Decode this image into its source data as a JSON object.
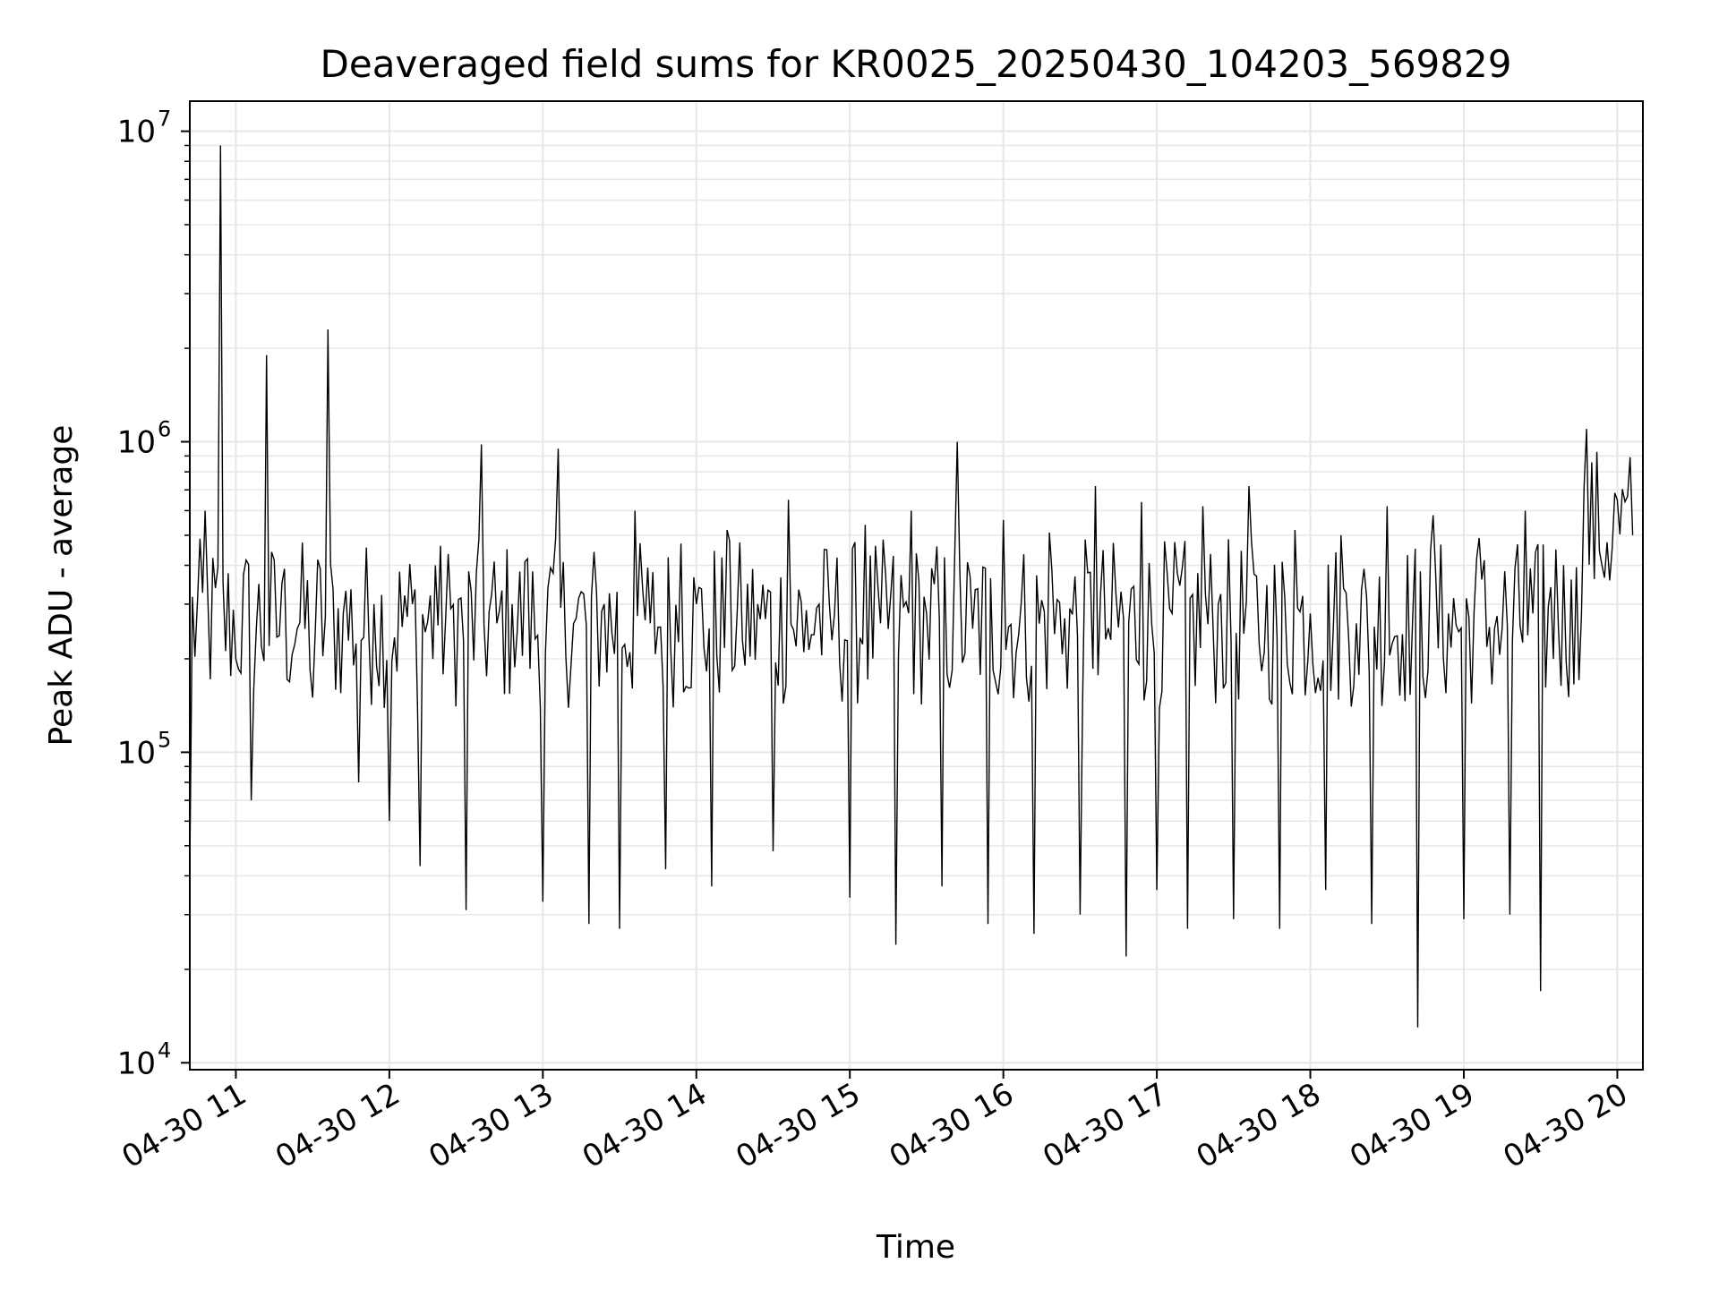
{
  "chart_data": {
    "type": "line",
    "title": "Deaveraged field sums for KR0025_20250430_104203_569829",
    "xlabel": "Time",
    "ylabel": "Peak ADU - average",
    "yscale": "log",
    "ylim": [
      9500,
      12500000
    ],
    "xlim": [
      "2025-04-30 10:42",
      "2025-04-30 20:10"
    ],
    "grid": true,
    "line_color": "#000000",
    "grid_color": "#e6e6e6",
    "x_tick_labels": [
      "04-30 11",
      "04-30 12",
      "04-30 13",
      "04-30 14",
      "04-30 15",
      "04-30 16",
      "04-30 17",
      "04-30 18",
      "04-30 19",
      "04-30 20"
    ],
    "y_tick_labels": [
      {
        "base": "10",
        "exp": "4"
      },
      {
        "base": "10",
        "exp": "5"
      },
      {
        "base": "10",
        "exp": "6"
      },
      {
        "base": "10",
        "exp": "7"
      }
    ],
    "series": [
      {
        "x": [
          "10:42",
          "10:48",
          "10:54",
          "11:00",
          "11:06",
          "11:12",
          "11:18",
          "11:24",
          "11:30",
          "11:36",
          "11:42",
          "11:48",
          "11:54",
          "12:00",
          "12:06",
          "12:12",
          "12:18",
          "12:24",
          "12:30",
          "12:36",
          "12:42",
          "12:48",
          "12:54",
          "13:00",
          "13:06",
          "13:12",
          "13:18",
          "13:24",
          "13:30",
          "13:36",
          "13:42",
          "13:48",
          "13:54",
          "14:00",
          "14:06",
          "14:12",
          "14:18",
          "14:24",
          "14:30",
          "14:36",
          "14:42",
          "14:48",
          "14:54",
          "15:00",
          "15:06",
          "15:12",
          "15:18",
          "15:24",
          "15:30",
          "15:36",
          "15:42",
          "15:48",
          "15:54",
          "16:00",
          "16:06",
          "16:12",
          "16:18",
          "16:24",
          "16:30",
          "16:36",
          "16:42",
          "16:48",
          "16:54",
          "17:00",
          "17:06",
          "17:12",
          "17:18",
          "17:24",
          "17:30",
          "17:36",
          "17:42",
          "17:48",
          "17:54",
          "18:00",
          "18:06",
          "18:12",
          "18:18",
          "18:24",
          "18:30",
          "18:36",
          "18:42",
          "18:48",
          "18:54",
          "19:00",
          "19:06",
          "19:12",
          "19:18",
          "19:24",
          "19:30",
          "19:36",
          "19:42",
          "19:48",
          "19:54",
          "20:00",
          "20:06"
        ],
        "y": [
          42000,
          600000,
          9000000,
          200000,
          70000,
          1900000,
          350000,
          250000,
          150000,
          2300000,
          280000,
          80000,
          300000,
          60000,
          320000,
          43000,
          400000,
          290000,
          31000,
          980000,
          260000,
          300000,
          420000,
          33000,
          950000,
          260000,
          28000,
          300000,
          27000,
          600000,
          260000,
          42000,
          470000,
          300000,
          37000,
          520000,
          230000,
          300000,
          48000,
          650000,
          210000,
          300000,
          280000,
          34000,
          540000,
          260000,
          24000,
          600000,
          280000,
          37000,
          1000000,
          250000,
          28000,
          560000,
          240000,
          26000,
          510000,
          270000,
          30000,
          720000,
          230000,
          22000,
          640000,
          36000,
          280000,
          27000,
          620000,
          300000,
          29000,
          720000,
          210000,
          27000,
          520000,
          280000,
          36000,
          500000,
          260000,
          28000,
          620000,
          240000,
          13000,
          580000,
          280000,
          29000,
          490000,
          250000,
          30000,
          600000,
          17000,
          450000,
          360000,
          1100000,
          400000,
          650000,
          500000
        ]
      }
    ]
  }
}
